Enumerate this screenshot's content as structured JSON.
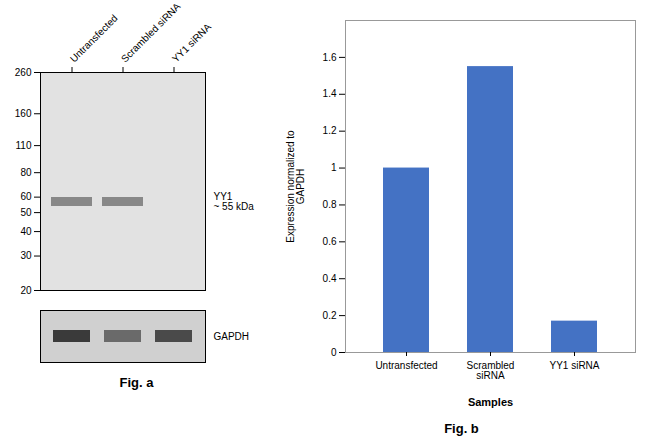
{
  "chart_data": [
    {
      "type": "western_blot",
      "categories": [
        "Untransfected",
        "Scrambled siRNA",
        "YY1 siRNA"
      ],
      "log": "y",
      "ylim": [
        20,
        260
      ],
      "yticks": [
        260,
        160,
        110,
        80,
        60,
        50,
        40,
        30,
        20
      ],
      "series": [
        {
          "name": "YY1\n~ 55 kDa",
          "color": "#888888",
          "values": [
            57,
            57,
            null
          ]
        }
      ]
    },
    {
      "type": "western_blot",
      "categories": [
        null,
        null,
        null
      ],
      "tick_labels": false,
      "series": [
        {
          "name": "GAPDH",
          "colors": [
            "#3a3a3a",
            "#6a6a6a",
            "#4a4a4a"
          ]
        }
      ],
      "caption": "Fig. a"
    },
    {
      "type": "bar",
      "categories": [
        "Untransfected",
        "Scrambled\nsiRNA",
        "YY1 siRNA"
      ],
      "values": [
        1.0,
        1.55,
        0.17
      ],
      "color": "#4472c4",
      "xlabel": "Samples",
      "ylabel": "Expression normalized to\nGAPDH",
      "ylim": [
        0,
        1.8
      ],
      "yticks": [
        0,
        0.2,
        0.4,
        0.6,
        0.8,
        1.0,
        1.2,
        1.4,
        1.6
      ],
      "grid": false,
      "caption": "Fig. b"
    }
  ]
}
